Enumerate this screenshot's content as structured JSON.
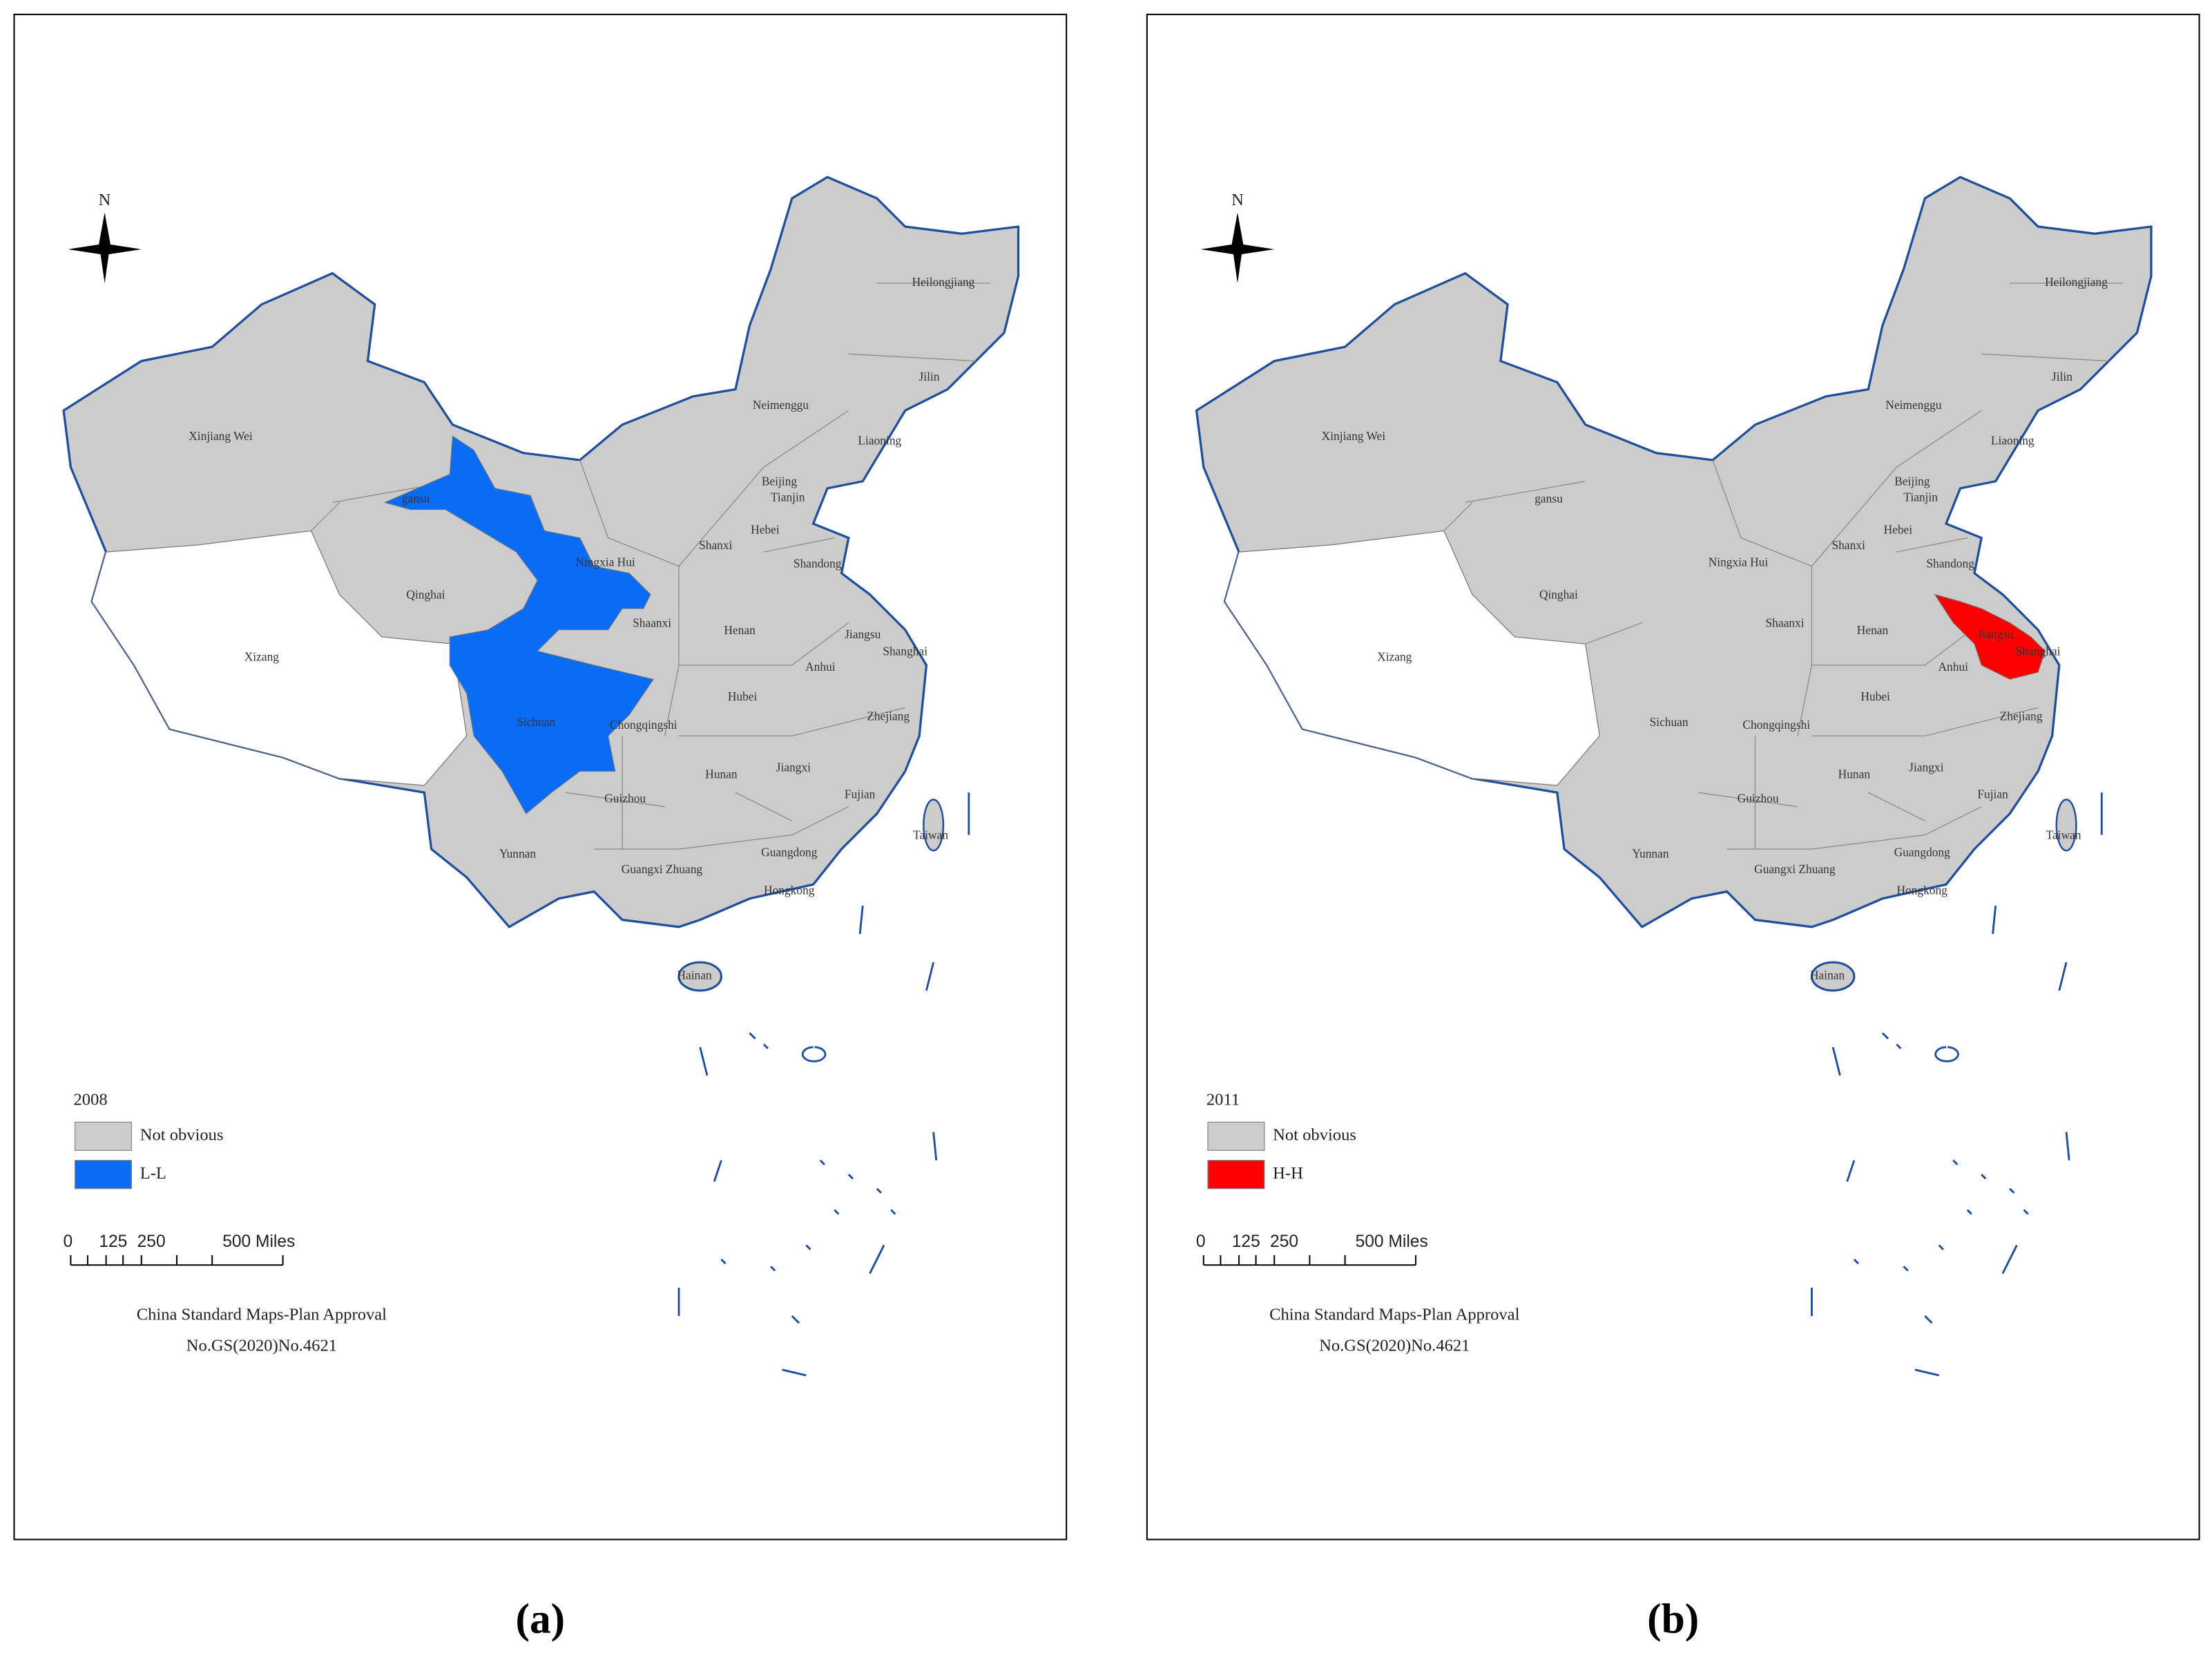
{
  "panels": [
    {
      "caption": "(a)",
      "year": "2008",
      "legend": [
        {
          "label": "Not obvious",
          "color": "#cccccc"
        },
        {
          "label": "L-L",
          "color": "#0a6cf5"
        }
      ],
      "province_labels": [
        "Heilongjiang",
        "Jilin",
        "Neimenggu",
        "Liaoning",
        "Xinjiang Wei",
        "Beijing",
        "Tianjin",
        "gansu",
        "Hebei",
        "Shanxi",
        "Ningxia Hui",
        "Shandong",
        "Qinghai",
        "Shaanxi",
        "Henan",
        "Jiangsu",
        "Shanghai",
        "Xizang",
        "Anhui",
        "Hubei",
        "Sichuan",
        "Chongqingshi",
        "Zhejiang",
        "Jiangxi",
        "Hunan",
        "Fujian",
        "Guizhou",
        "Taiwan",
        "Yunnan",
        "Guangxi Zhuang",
        "Guangdong",
        "Hongkong",
        "Hainan"
      ],
      "scale_labels": [
        "0",
        "125",
        "250",
        "500 Miles"
      ],
      "approval": [
        "China Standard Maps-Plan Approval",
        "No.GS(2020)No.4621"
      ],
      "north": "N"
    },
    {
      "caption": "(b)",
      "year": "2011",
      "legend": [
        {
          "label": "Not obvious",
          "color": "#cccccc"
        },
        {
          "label": "H-H",
          "color": "#ff0000"
        }
      ],
      "province_labels": [
        "Heilongjiang",
        "Jilin",
        "Neimenggu",
        "Liaoning",
        "Xinjiang Wei",
        "Beijing",
        "Tianjin",
        "gansu",
        "Hebei",
        "Shanxi",
        "Ningxia Hui",
        "Shandong",
        "Qinghai",
        "Shaanxi",
        "Henan",
        "Jiangsu",
        "Shanghai",
        "Xizang",
        "Anhui",
        "Hubei",
        "Sichuan",
        "Chongqingshi",
        "Zhejiang",
        "Jiangxi",
        "Hunan",
        "Fujian",
        "Guizhou",
        "Taiwan",
        "Yunnan",
        "Guangxi Zhuang",
        "Guangdong",
        "Hongkong",
        "Hainan"
      ],
      "scale_labels": [
        "0",
        "125",
        "250",
        "500 Miles"
      ],
      "approval": [
        "China Standard Maps-Plan Approval",
        "No.GS(2020)No.4621"
      ],
      "north": "N"
    }
  ]
}
